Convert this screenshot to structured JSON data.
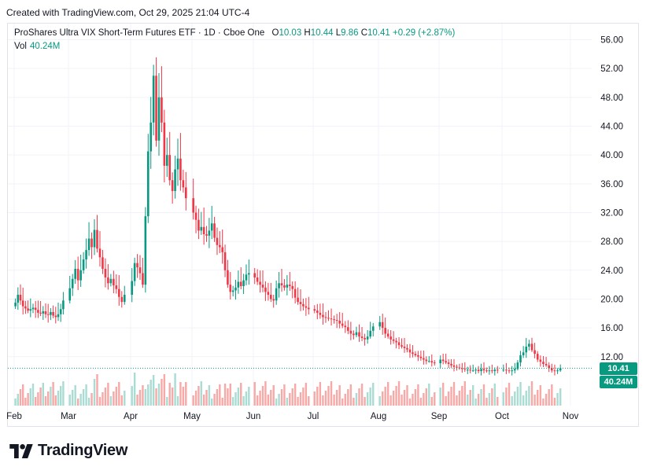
{
  "header": {
    "created_note": "Created with TradingView.com, Oct 29, 2025 21:04 UTC-4"
  },
  "legend": {
    "symbol": "ProShares Ultra VIX Short-Term Futures ETF · 1D · Cboe One",
    "o_key": "O",
    "o_val": "10.03",
    "h_key": "H",
    "h_val": "10.44",
    "l_key": "L",
    "l_val": "9.86",
    "c_key": "C",
    "c_val": "10.41",
    "change": "+0.29 (+2.87%)",
    "vol_key": "Vol",
    "vol_val": "40.24M"
  },
  "labels": {
    "last_price": "10.41",
    "last_volume": "40.24M"
  },
  "footer": {
    "brand": "TradingView"
  },
  "colors": {
    "up": "#089981",
    "down": "#f23645",
    "up_vol": "#a9dcd3",
    "down_vol": "#f7a9a7",
    "text": "#131722",
    "grid": "#f0f3fa"
  },
  "chart_data": {
    "type": "candlestick",
    "y_ticks": [
      "56.00",
      "52.00",
      "48.00",
      "44.00",
      "40.00",
      "36.00",
      "32.00",
      "28.00",
      "24.00",
      "20.00",
      "16.00",
      "12.00"
    ],
    "ylim": [
      8.5,
      58
    ],
    "x_ticks": [
      "Feb",
      "Mar",
      "Apr",
      "May",
      "Jun",
      "Jul",
      "Aug",
      "Sep",
      "Oct",
      "Nov"
    ],
    "last_close": 10.41,
    "close_series": [
      {
        "month": "Feb",
        "closes": [
          19.5,
          20.6,
          19.8,
          19.0,
          18.7,
          18.4,
          18.6,
          18.8,
          18.5,
          18.1,
          18.0,
          18.3,
          17.9,
          17.8,
          18.2,
          17.7,
          17.5,
          17.9,
          18.6,
          19.8
        ]
      },
      {
        "month": "Mar",
        "closes": [
          21.5,
          22.8,
          24.2,
          22.6,
          24.0,
          25.5,
          26.8,
          28.4,
          27.2,
          29.6,
          27.0,
          25.8,
          24.2,
          23.0,
          22.2,
          22.8,
          21.9,
          21.4,
          20.3,
          19.6,
          20.6
        ]
      },
      {
        "month": "Apr",
        "closes": [
          22.5,
          25.0,
          24.4,
          23.6,
          22.0,
          31.5,
          40.5,
          44.5,
          51.0,
          42.0,
          48.0,
          44.5,
          38.5,
          40.0,
          36.5,
          35.0,
          38.0,
          39.5,
          36.5,
          35.5,
          34.0
        ]
      },
      {
        "month": "May",
        "closes": [
          32.0,
          31.0,
          29.5,
          30.0,
          29.0,
          28.8,
          29.5,
          30.5,
          28.5,
          27.5,
          27.2,
          26.5,
          24.0,
          22.0,
          21.0,
          21.2,
          21.6,
          22.4,
          21.8,
          22.6,
          23.4,
          23.6
        ]
      },
      {
        "month": "Jun",
        "closes": [
          23.0,
          22.4,
          22.0,
          21.6,
          21.0,
          20.6,
          20.0,
          19.8,
          21.5,
          22.2,
          21.9,
          21.6,
          22.0,
          21.8,
          21.4,
          20.2,
          19.6,
          19.3,
          19.0,
          18.8,
          18.6
        ]
      },
      {
        "month": "Jul",
        "closes": [
          18.4,
          18.1,
          17.8,
          17.5,
          17.4,
          17.3,
          17.2,
          17.1,
          17.0,
          16.6,
          16.3,
          16.1,
          15.6,
          15.2,
          15.0,
          15.4,
          14.8,
          14.6,
          14.4,
          14.8,
          15.6,
          16.2
        ]
      },
      {
        "month": "Aug",
        "closes": [
          16.8,
          16.0,
          15.2,
          14.8,
          14.4,
          14.2,
          14.0,
          13.6,
          13.4,
          13.2,
          13.0,
          12.6,
          12.4,
          12.2,
          12.0,
          11.8,
          11.6,
          11.4,
          11.4,
          11.2,
          11.1
        ]
      },
      {
        "month": "Sep",
        "closes": [
          11.6,
          11.4,
          11.2,
          11.0,
          10.8,
          10.6,
          10.5,
          10.4,
          10.3,
          10.2,
          10.2,
          10.1,
          10.1,
          10.2,
          10.0,
          10.3,
          10.1,
          10.0,
          10.1,
          10.0,
          10.2,
          10.1
        ]
      },
      {
        "month": "Oct",
        "closes": [
          10.2,
          10.1,
          10.0,
          10.1,
          10.3,
          11.2,
          12.2,
          12.6,
          13.4,
          13.8,
          12.9,
          12.4,
          11.6,
          11.3,
          11.0,
          10.8,
          10.4,
          10.1,
          10.0,
          10.1,
          10.41
        ]
      }
    ]
  }
}
